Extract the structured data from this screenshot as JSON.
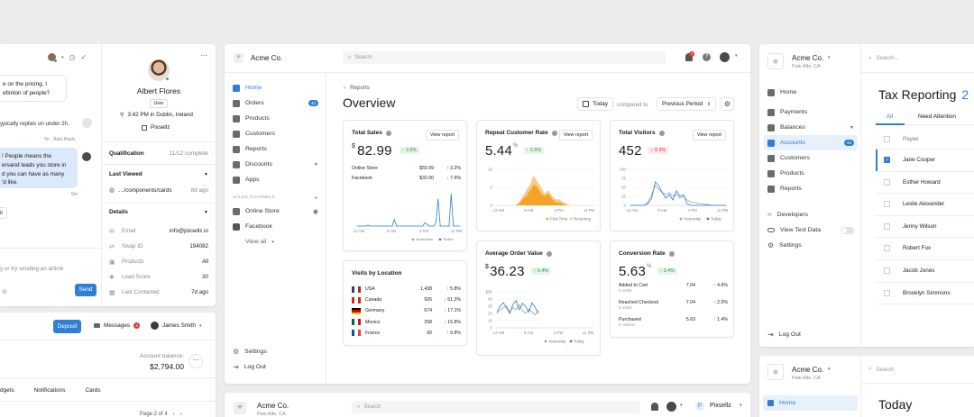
{
  "left_panel": {
    "chat": [
      "e on the pricing, I",
      "efiniton of people?",
      "ypically replies un under 2h.",
      "7m · Auto Reply",
      "! People means the",
      "ersand leads you store in",
      "d you can have as many",
      "'d like.",
      "5m",
      "il",
      "y or try sending an article"
    ],
    "send_label": "Send",
    "user": {
      "name": "Albert Flores",
      "role": "User",
      "time": "3:42 PM in Dublin, Ireland",
      "company": "Pixsellz"
    },
    "qualification": {
      "label": "Qualification",
      "value": "11/12 complete"
    },
    "last_viewed": {
      "label": "Last Viewed",
      "path": "…/components/cards",
      "ago": "8d ago"
    },
    "details_label": "Details",
    "details": [
      {
        "k": "Email",
        "v": "info@pixsellz.io"
      },
      {
        "k": "Swap ID",
        "v": "194082"
      },
      {
        "k": "Products",
        "v": "All"
      },
      {
        "k": "Lead Score",
        "v": "30"
      },
      {
        "k": "Last Contacted",
        "v": "7d ago"
      }
    ]
  },
  "left_bottom": {
    "deposit": "Deposit",
    "messages": "Messages",
    "messages_count": "3",
    "user": "James Smith",
    "balance_label": "Account balance:",
    "balance": "$2,794.00",
    "tabs": [
      "dgets",
      "Notifications",
      "Cards"
    ],
    "pager": "Page 2 of 4"
  },
  "main": {
    "company": "Acme Co.",
    "search_placeholder": "Search",
    "notif_count": "3",
    "nav": [
      "Home",
      "Orders",
      "Products",
      "Customers",
      "Reports",
      "Discounts",
      "Apps"
    ],
    "orders_badge": "44",
    "channels_label": "SALES CHANNELS",
    "channels": [
      "Online Store",
      "Facebook"
    ],
    "view_all": "View all",
    "footer_nav": [
      "Settings",
      "Log Out"
    ],
    "breadcrumb": "Reports",
    "title": "Overview",
    "date": "Today",
    "compared_to": "compared to",
    "period": "Previous Period"
  },
  "cards": {
    "view_report": "View report",
    "total_sales": {
      "title": "Total Sales",
      "currency": "$",
      "value": "82.99",
      "delta": "2.6%",
      "rows": [
        {
          "name": "Online Store",
          "value": "$50.99",
          "delta": "3.2%",
          "dir": "up"
        },
        {
          "name": "Facebook",
          "value": "$32.00",
          "delta": "7.6%",
          "dir": "dn"
        }
      ],
      "x_ticks": [
        "12 AM",
        "8 AM",
        "4 PM",
        "11 PM"
      ],
      "legend": [
        "Yesterday",
        "Today"
      ]
    },
    "visits": {
      "title": "Visits by Location",
      "rows": [
        {
          "country": "USA",
          "count": "1,438",
          "delta": "5.8%",
          "dir": "up"
        },
        {
          "country": "Canada",
          "count": "926",
          "delta": "51.2%",
          "dir": "dn"
        },
        {
          "country": "Germany",
          "count": "674",
          "delta": "17.1%",
          "dir": "up"
        },
        {
          "country": "Mexico",
          "count": "258",
          "delta": "15.8%",
          "dir": "dn"
        },
        {
          "country": "France",
          "count": "90",
          "delta": "9.8%",
          "dir": "up"
        }
      ]
    },
    "repeat": {
      "title": "Repeat Customer Rate",
      "value": "5.44",
      "unit": "%",
      "delta": "2.6%",
      "y_ticks": [
        "10",
        "5",
        "0"
      ],
      "x_ticks": [
        "12 AM",
        "8 AM",
        "4 PM",
        "11 PM"
      ],
      "legend": [
        "First Time",
        "Returning"
      ]
    },
    "aov": {
      "title": "Average Order Value",
      "currency": "$",
      "value": "36.23",
      "delta": "6.4%",
      "y_ticks": [
        "$50",
        "40",
        "30",
        "20",
        "10",
        "0"
      ],
      "x_ticks": [
        "12 AM",
        "8 AM",
        "4 PM",
        "11 PM"
      ],
      "legend": [
        "Yesterday",
        "Today"
      ]
    },
    "visitors": {
      "title": "Total Visitors",
      "value": "452",
      "delta": "9.3%",
      "y_ticks": [
        "100",
        "75",
        "50",
        "25",
        "0"
      ],
      "x_ticks": [
        "12 AM",
        "8 AM",
        "4 PM",
        "11 PM"
      ],
      "legend": [
        "Yesterday",
        "Today"
      ]
    },
    "conversion": {
      "title": "Conversion Rate",
      "value": "5.63",
      "unit": "%",
      "delta": "3.4%",
      "rows": [
        {
          "name": "Added to Cart",
          "sub": "5 visits",
          "value": "7.04",
          "delta": "4.6%"
        },
        {
          "name": "Reached Checkout",
          "sub": "5 visits",
          "value": "7.04",
          "delta": "2.0%"
        },
        {
          "name": "Purchased",
          "sub": "4 orders",
          "value": "5.63",
          "delta": "1.4%"
        }
      ]
    }
  },
  "bottom_main": {
    "company": "Acme Co.",
    "location": "Palo Alto, CA",
    "search_placeholder": "Search",
    "brand": "Pixsellz"
  },
  "right": {
    "company": "Acme Co.",
    "location": "Palo Alto, CA",
    "search_placeholder": "Search...",
    "nav": [
      "Home",
      "Payments",
      "Balances",
      "Accounts",
      "Customers",
      "Products",
      "Reports"
    ],
    "accounts_badge": "42",
    "developers": "Developers",
    "test_data": "View Test Data",
    "log_out": "Log Out",
    "title": "Tax Reporting",
    "title_count": "2",
    "tabs": [
      "All",
      "Need Attention"
    ],
    "column": "Payee",
    "payees": [
      "Jane Cooper",
      "Esther Howard",
      "Leslie Alexander",
      "Jenny Wilson",
      "Robert Fox",
      "Jacob Jones",
      "Brooklyn Simmons"
    ],
    "bottom": {
      "company": "Acme Co.",
      "location": "Palo Alto, CA",
      "search_placeholder": "Search",
      "home": "Home",
      "title": "Today"
    }
  },
  "colors": {
    "accent": "#2f7fd6",
    "orange": "#f2a024",
    "green": "#1f8a3b",
    "red": "#c83232"
  }
}
